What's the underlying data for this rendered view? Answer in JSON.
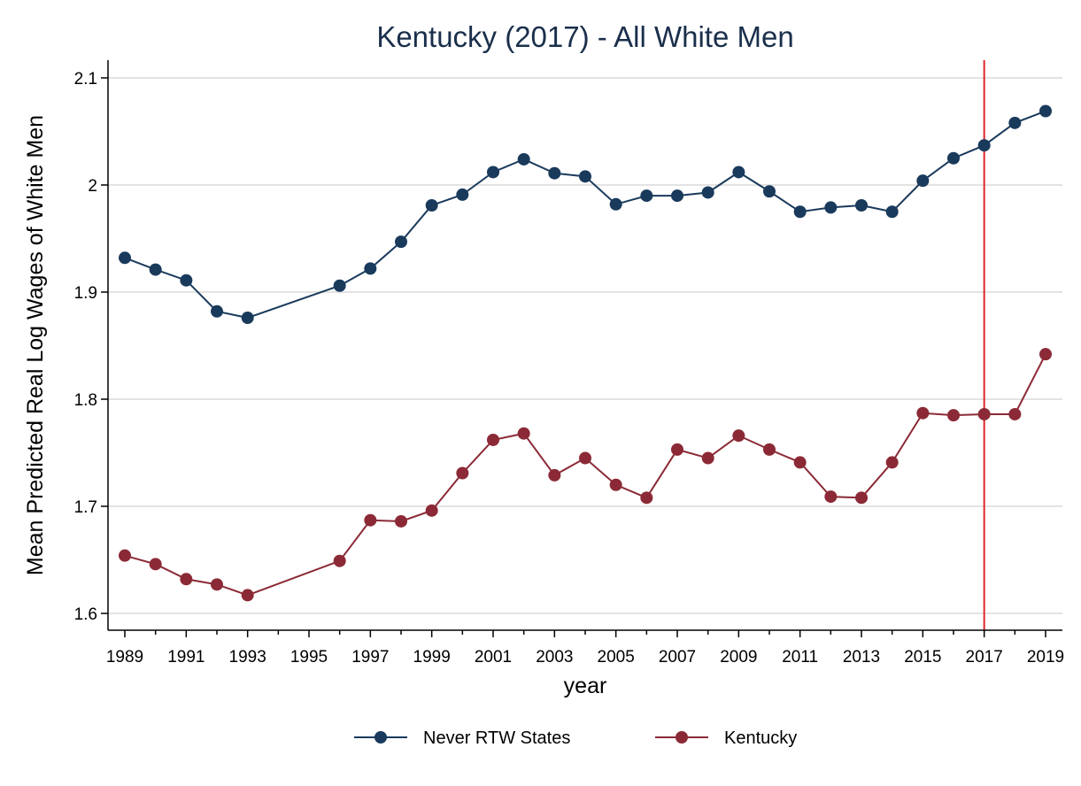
{
  "chart_data": {
    "type": "line",
    "title": "Kentucky (2017) - All White Men",
    "xlabel": "year",
    "ylabel": "Mean Predicted Real Log Wages of White Men",
    "xlim": [
      1989,
      2019
    ],
    "ylim": [
      1.6,
      2.1
    ],
    "x_ticks": [
      "1989",
      "1991",
      "1993",
      "1995",
      "1997",
      "1999",
      "2001",
      "2003",
      "2005",
      "2007",
      "2009",
      "2011",
      "2013",
      "2015",
      "2017",
      "2019"
    ],
    "y_ticks": [
      "1.6",
      "1.7",
      "1.8",
      "1.9",
      "2",
      "2.1"
    ],
    "grid": true,
    "legend_position": "bottom",
    "reference_line": {
      "x": 2017,
      "color": "#e0262b"
    },
    "series": [
      {
        "name": "Never RTW States",
        "color": "#1a3a5c",
        "x": [
          1989,
          1990,
          1991,
          1992,
          1993,
          1996,
          1997,
          1998,
          1999,
          2000,
          2001,
          2002,
          2003,
          2004,
          2005,
          2006,
          2007,
          2008,
          2009,
          2010,
          2011,
          2012,
          2013,
          2014,
          2015,
          2016,
          2017,
          2018,
          2019
        ],
        "values": [
          1.932,
          1.921,
          1.911,
          1.882,
          1.876,
          1.906,
          1.922,
          1.947,
          1.981,
          1.991,
          2.012,
          2.024,
          2.011,
          2.008,
          1.982,
          1.99,
          1.99,
          1.993,
          2.012,
          1.994,
          1.975,
          1.979,
          1.981,
          1.975,
          2.004,
          2.025,
          2.037,
          2.058,
          2.069
        ]
      },
      {
        "name": "Kentucky",
        "color": "#8b2a36",
        "x": [
          1989,
          1990,
          1991,
          1992,
          1993,
          1996,
          1997,
          1998,
          1999,
          2000,
          2001,
          2002,
          2003,
          2004,
          2005,
          2006,
          2007,
          2008,
          2009,
          2010,
          2011,
          2012,
          2013,
          2014,
          2015,
          2016,
          2017,
          2018,
          2019
        ],
        "values": [
          1.654,
          1.646,
          1.632,
          1.627,
          1.617,
          1.649,
          1.687,
          1.686,
          1.696,
          1.731,
          1.762,
          1.768,
          1.729,
          1.745,
          1.72,
          1.708,
          1.753,
          1.745,
          1.766,
          1.753,
          1.741,
          1.709,
          1.708,
          1.741,
          1.787,
          1.785,
          1.786,
          1.786,
          1.842
        ]
      }
    ]
  }
}
